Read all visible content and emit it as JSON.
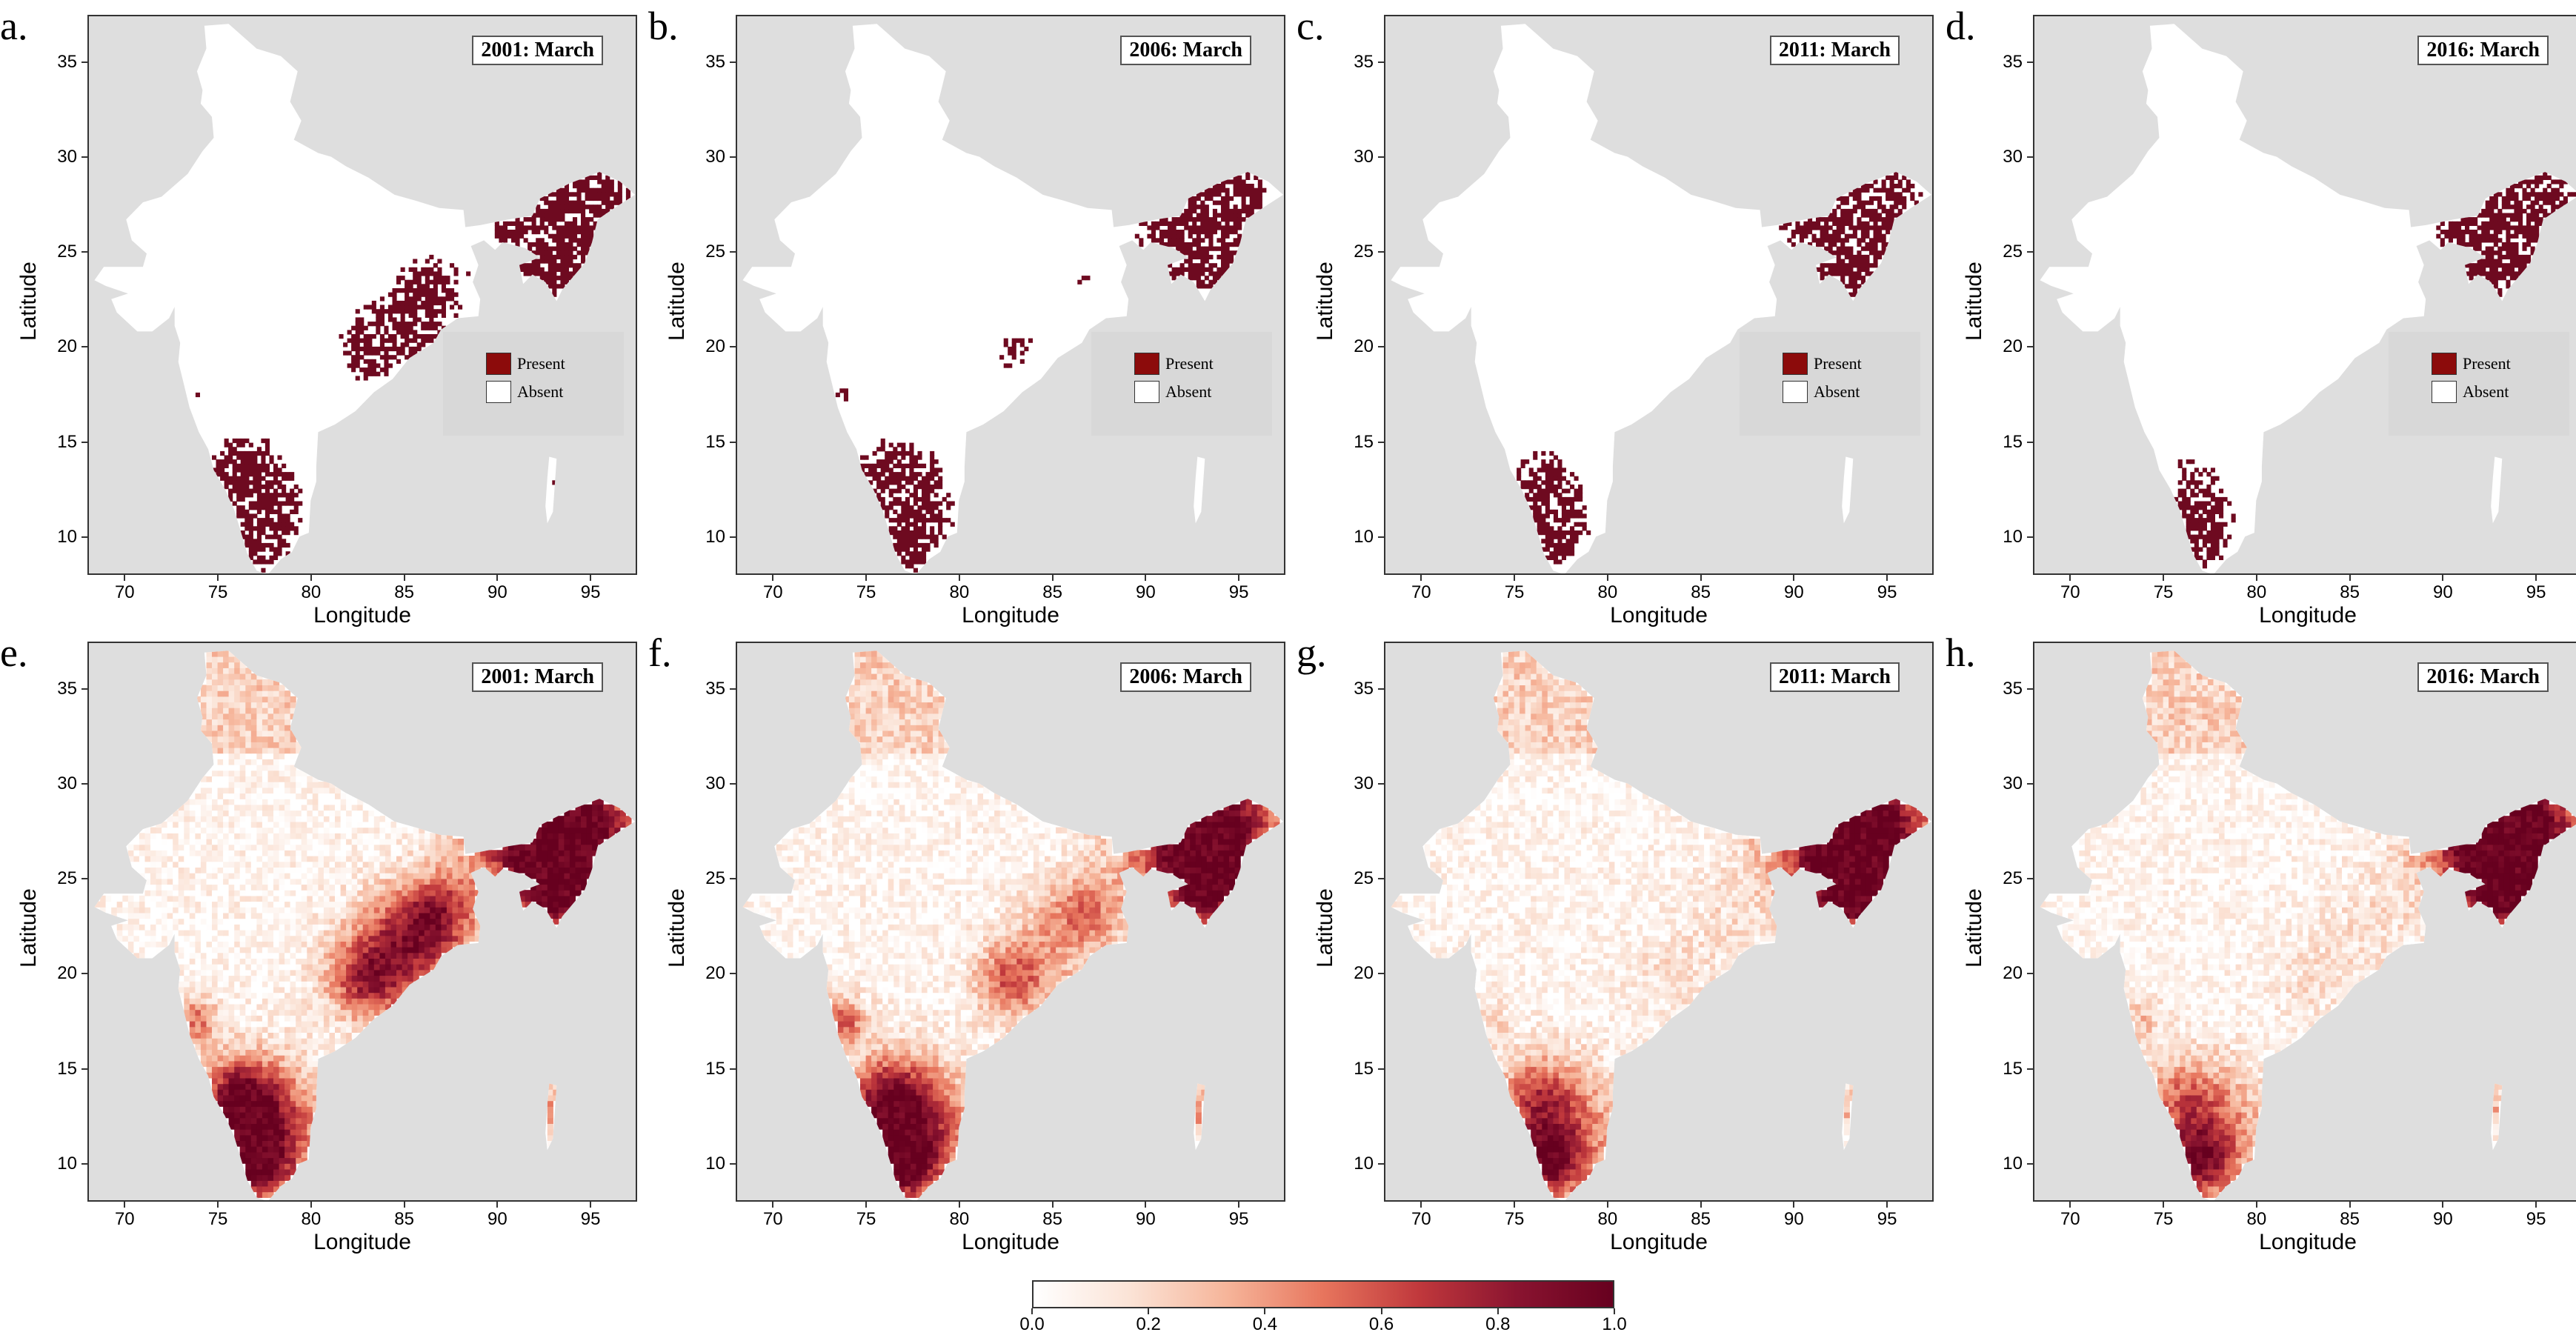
{
  "colors": {
    "ocean": "#dedede",
    "land": "#ffffff",
    "present": "#6e0a20",
    "legend_present": "#8c0b0b",
    "legend_absent": "#ffffff",
    "gradient": [
      "#ffffff",
      "#fbe3d6",
      "#f6b59a",
      "#e7755d",
      "#c0383c",
      "#8a1430",
      "#67001f"
    ]
  },
  "axes": {
    "xlabel": "Longitude",
    "ylabel": "Latitude",
    "xticks": [
      "70",
      "75",
      "80",
      "85",
      "90",
      "95"
    ],
    "yticks": [
      "10",
      "15",
      "20",
      "25",
      "30",
      "35"
    ],
    "xlim": [
      68,
      97.5
    ],
    "ylim": [
      8,
      37.5
    ]
  },
  "legend": {
    "present_label": "Present",
    "absent_label": "Absent",
    "present_icon": "dark-red-square",
    "absent_icon": "white-square"
  },
  "panels": [
    {
      "id": "a",
      "letter": "a.",
      "title": "2001: March",
      "type": "presence"
    },
    {
      "id": "b",
      "letter": "b.",
      "title": "2006: March",
      "type": "presence"
    },
    {
      "id": "c",
      "letter": "c.",
      "title": "2011: March",
      "type": "presence"
    },
    {
      "id": "d",
      "letter": "d.",
      "title": "2016: March",
      "type": "presence"
    },
    {
      "id": "e",
      "letter": "e.",
      "title": "2001: March",
      "type": "probability"
    },
    {
      "id": "f",
      "letter": "f.",
      "title": "2006: March",
      "type": "probability"
    },
    {
      "id": "g",
      "letter": "g.",
      "title": "2011: March",
      "type": "probability"
    },
    {
      "id": "h",
      "letter": "h.",
      "title": "2016: March",
      "type": "probability"
    }
  ],
  "colorbar": {
    "ticks": [
      "0.0",
      "0.2",
      "0.4",
      "0.6",
      "0.8",
      "1.0"
    ],
    "range": [
      0,
      1
    ]
  }
}
